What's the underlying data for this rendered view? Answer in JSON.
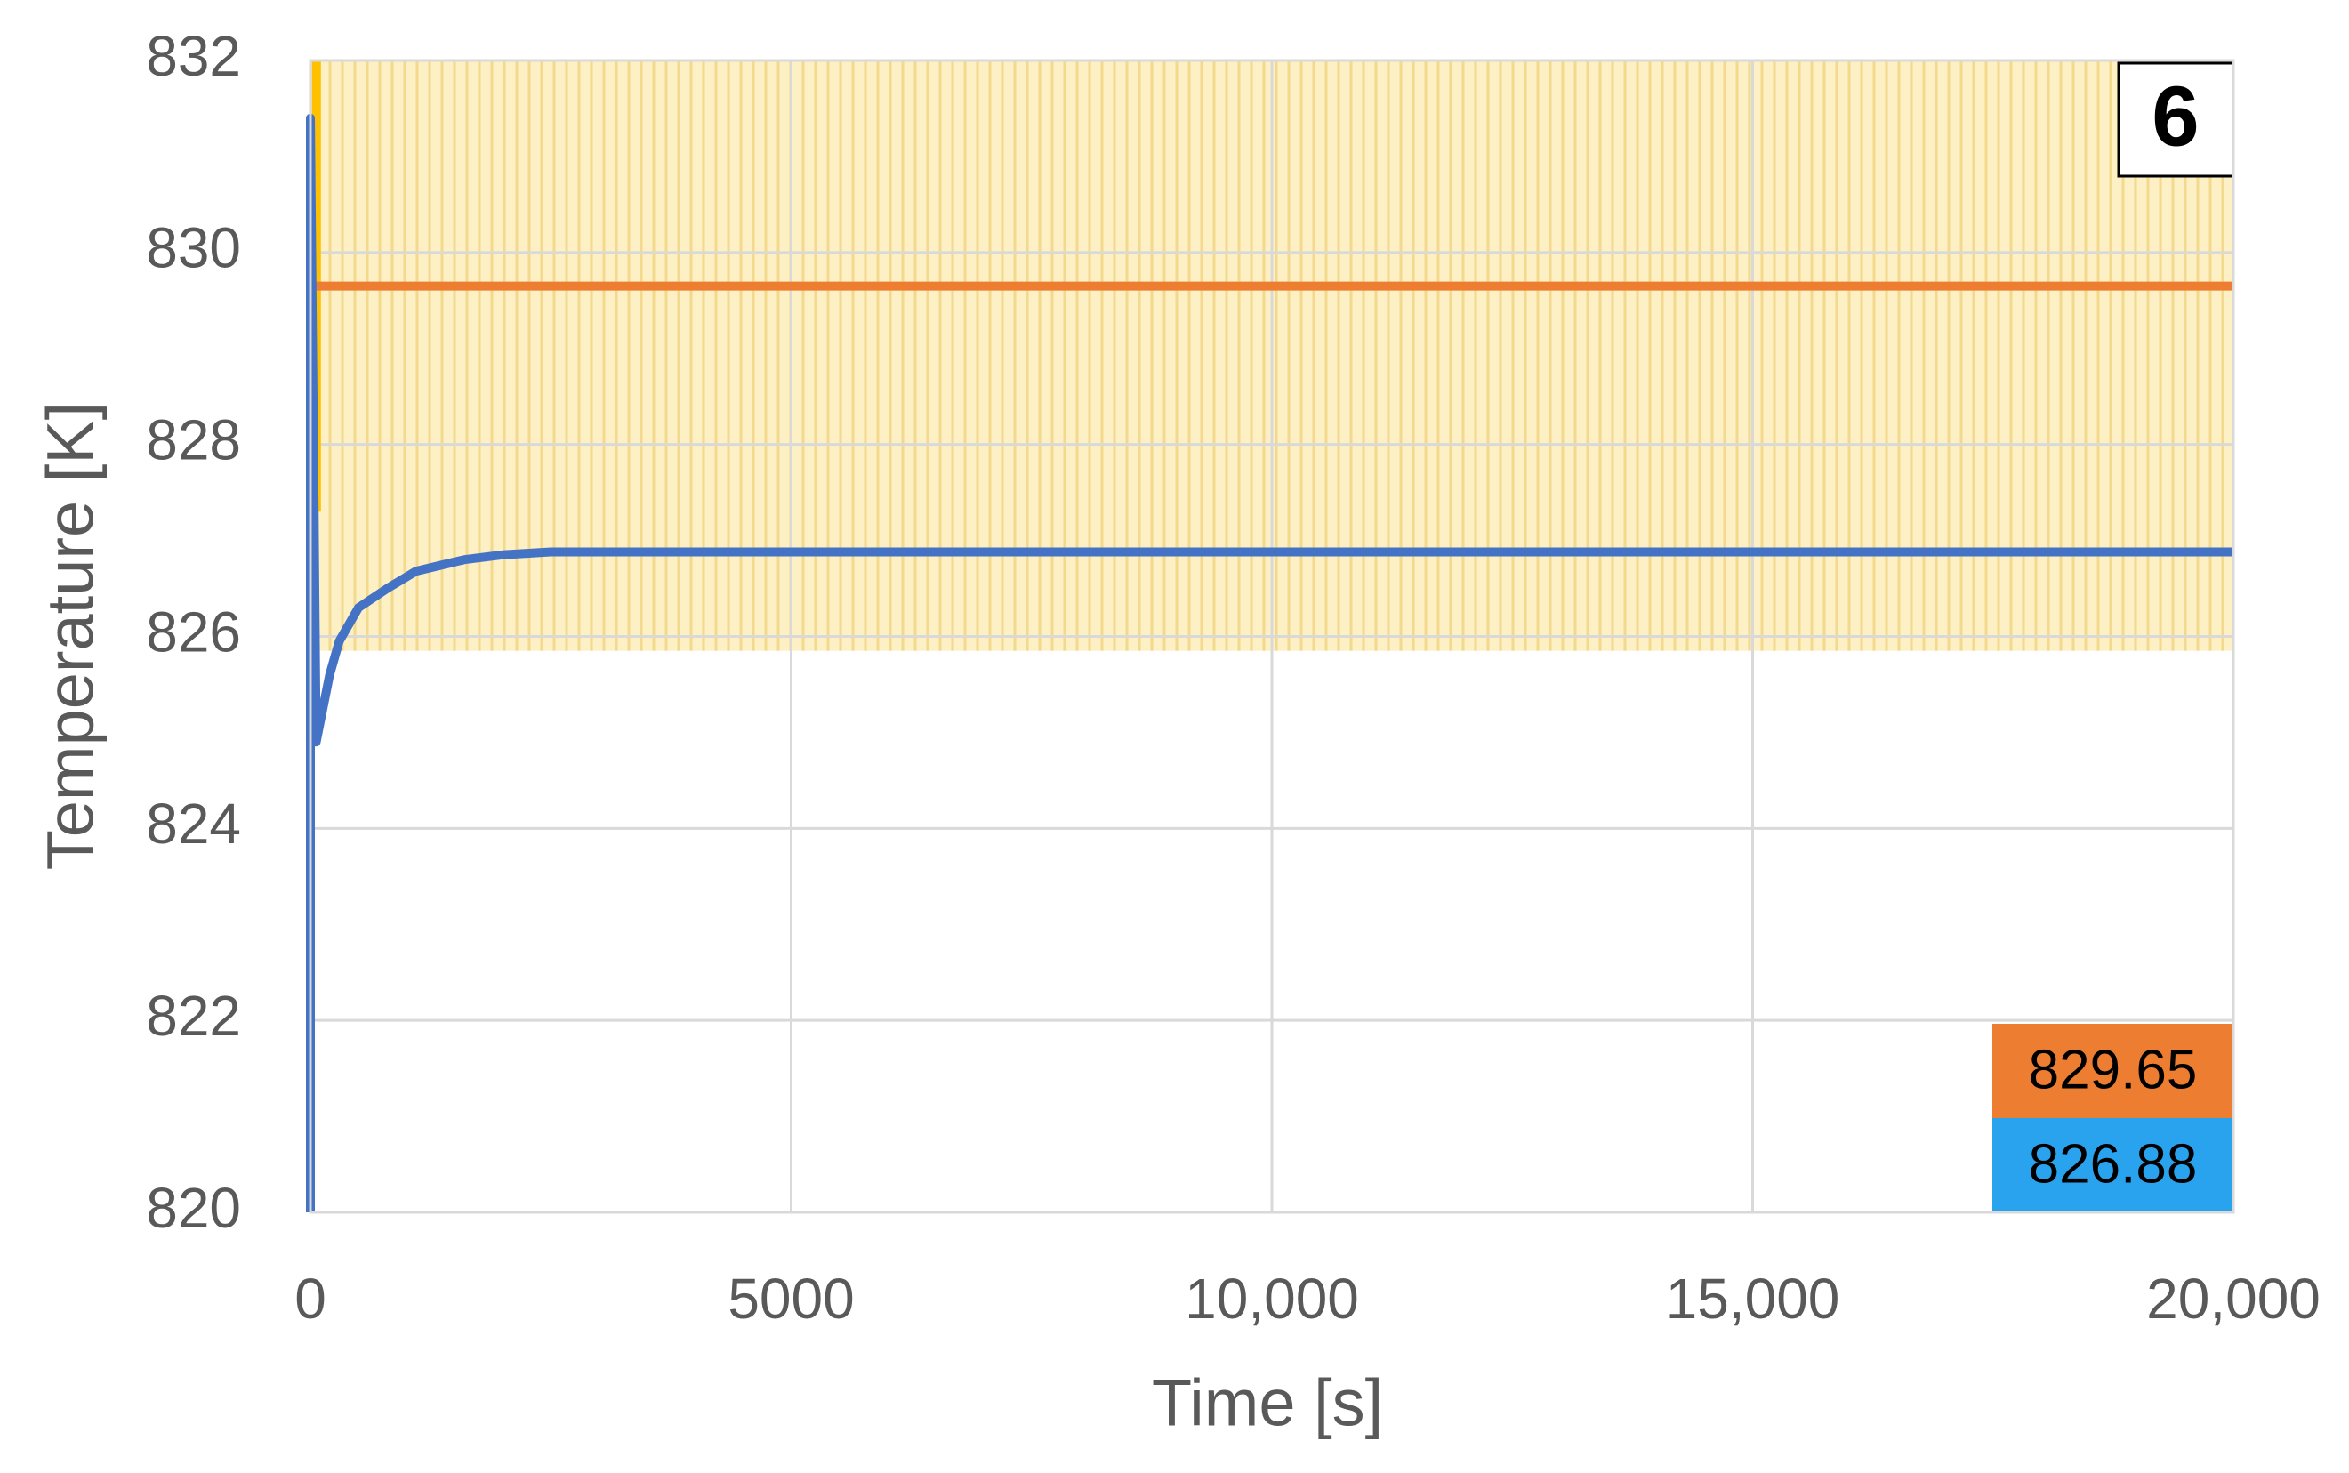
{
  "chart_data": {
    "type": "line",
    "xlabel": "Time [s]",
    "ylabel": "Temperature [K]",
    "xlim": [
      0,
      20000
    ],
    "ylim": [
      820,
      832
    ],
    "xticks": [
      0,
      5000,
      {
        "value": 10000,
        "label": "10,000"
      },
      {
        "value": 15000,
        "label": "15,000"
      },
      {
        "value": 20000,
        "label": "20,000"
      }
    ],
    "yticks": [
      820,
      822,
      824,
      826,
      828,
      830,
      832
    ],
    "grid": true,
    "shaded_band": {
      "ylim": [
        825.85,
        832
      ],
      "color": "#fdf0c4",
      "hatch_color": "#f3d98c"
    },
    "series": [
      {
        "color": "#ffc000",
        "x": [
          63,
          63
        ],
        "values": [
          827.3,
          832
        ]
      },
      {
        "color": "#ed7d31",
        "x": [
          0,
          20000
        ],
        "values": [
          829.65,
          829.65
        ]
      },
      {
        "color": "#4472c4",
        "x": [
          0,
          0,
          40,
          60,
          100,
          200,
          300,
          500,
          800,
          1100,
          1600,
          2000,
          2500,
          20000
        ],
        "values": [
          820,
          831.4,
          827.2,
          824.9,
          825.1,
          825.6,
          825.95,
          826.3,
          826.5,
          826.68,
          826.8,
          826.85,
          826.88,
          826.88
        ]
      }
    ],
    "end_labels": [
      {
        "value": 829.65,
        "color": "#ed7d31"
      },
      {
        "value": 826.88,
        "color": "#2aa3ef"
      }
    ],
    "panel_label": "6"
  }
}
